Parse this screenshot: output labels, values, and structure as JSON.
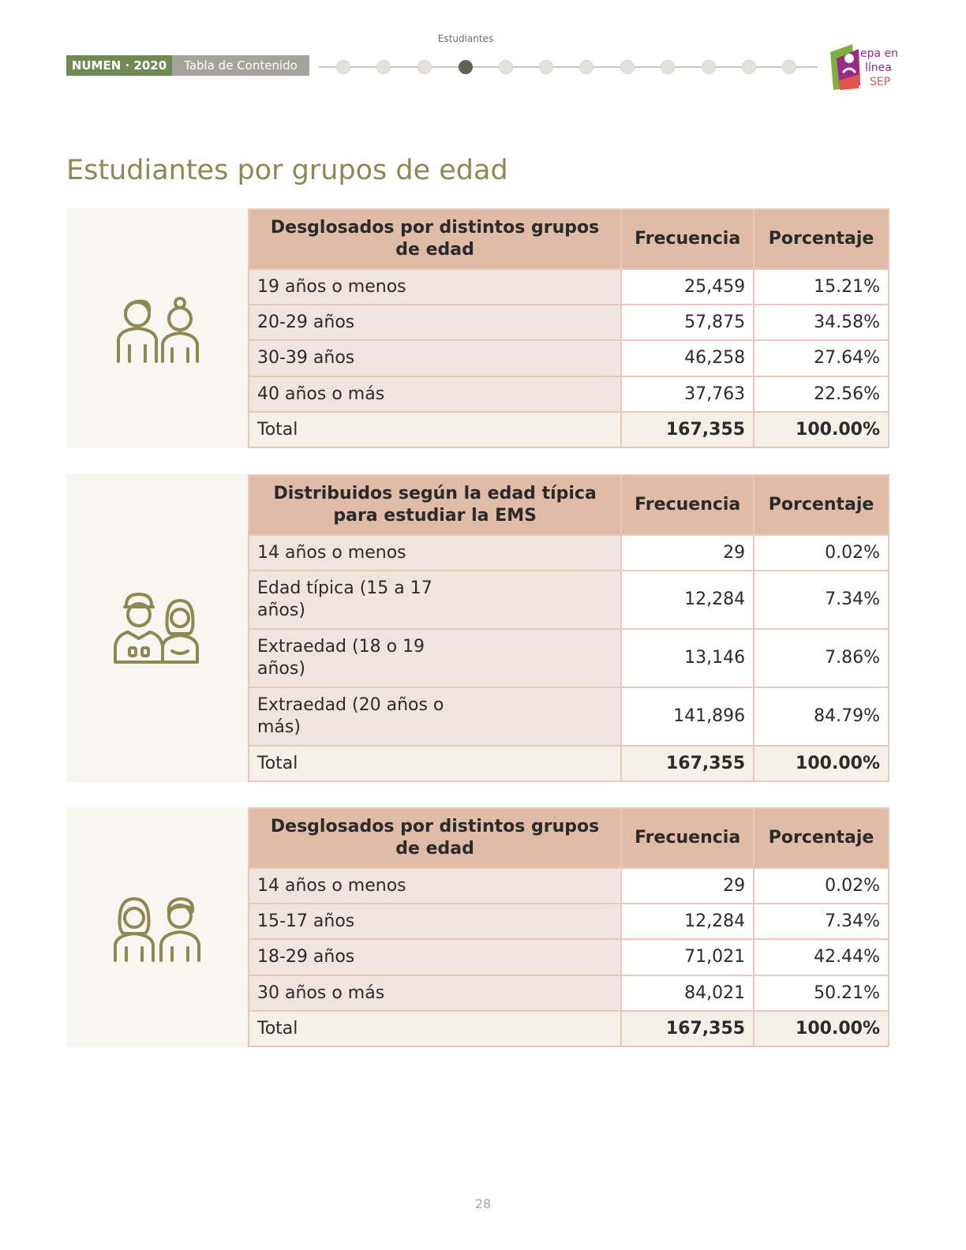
{
  "header": {
    "section": "Estudiantes",
    "badge_numen": "NUMEN · 2020",
    "badge_toc": "Tabla de Contenido",
    "progress": {
      "total_steps": 12,
      "active_step": 4
    },
    "logo": {
      "icon": "prepa-en-linea-sep-logo",
      "text_line1": "epa en",
      "text_line2": "línea",
      "text_line3": "SEP"
    }
  },
  "title": "Estudiantes por grupos de edad",
  "colors": {
    "title": "#8e8852",
    "header_bg": "#e0bca7",
    "label_bg": "#f0e4df",
    "total_bg": "#f4efe7",
    "icon": "#8e8852",
    "badge": "#6f8a53"
  },
  "tables": [
    {
      "icon": "two-young-people-icon",
      "headers": [
        "Desglosados por distintos grupos de edad",
        "Frecuencia",
        "Porcentaje"
      ],
      "rows": [
        {
          "label": "19 años o menos",
          "freq": "25,459",
          "pct": "15.21%"
        },
        {
          "label": "20-29 años",
          "freq": "57,875",
          "pct": "34.58%"
        },
        {
          "label": "30-39 años",
          "freq": "46,258",
          "pct": "27.64%"
        },
        {
          "label": "40 años o más",
          "freq": "37,763",
          "pct": "22.56%"
        }
      ],
      "total": {
        "label": "Total",
        "freq": "167,355",
        "pct": "100.00%"
      }
    },
    {
      "icon": "two-students-icon",
      "headers": [
        "Distribuidos según la edad típica para estudiar la EMS",
        "Frecuencia",
        "Porcentaje"
      ],
      "rows": [
        {
          "label": "14 años o menos",
          "freq": "29",
          "pct": "0.02%"
        },
        {
          "label": "Edad típica (15 a 17 años)",
          "freq": "12,284",
          "pct": "7.34%"
        },
        {
          "label": "Extraedad (18 o 19 años)",
          "freq": "13,146",
          "pct": "7.86%"
        },
        {
          "label": "Extraedad (20 años o más)",
          "freq": "141,896",
          "pct": "84.79%"
        }
      ],
      "total": {
        "label": "Total",
        "freq": "167,355",
        "pct": "100.00%"
      }
    },
    {
      "icon": "woman-and-man-icon",
      "headers": [
        "Desglosados por distintos grupos de edad",
        "Frecuencia",
        "Porcentaje"
      ],
      "rows": [
        {
          "label": "14 años o menos",
          "freq": "29",
          "pct": "0.02%"
        },
        {
          "label": "15-17 años",
          "freq": "12,284",
          "pct": "7.34%"
        },
        {
          "label": "18-29 años",
          "freq": "71,021",
          "pct": "42.44%"
        },
        {
          "label": "30 años o más",
          "freq": "84,021",
          "pct": "50.21%"
        }
      ],
      "total": {
        "label": "Total",
        "freq": "167,355",
        "pct": "100.00%"
      }
    }
  ],
  "page_number": "28"
}
